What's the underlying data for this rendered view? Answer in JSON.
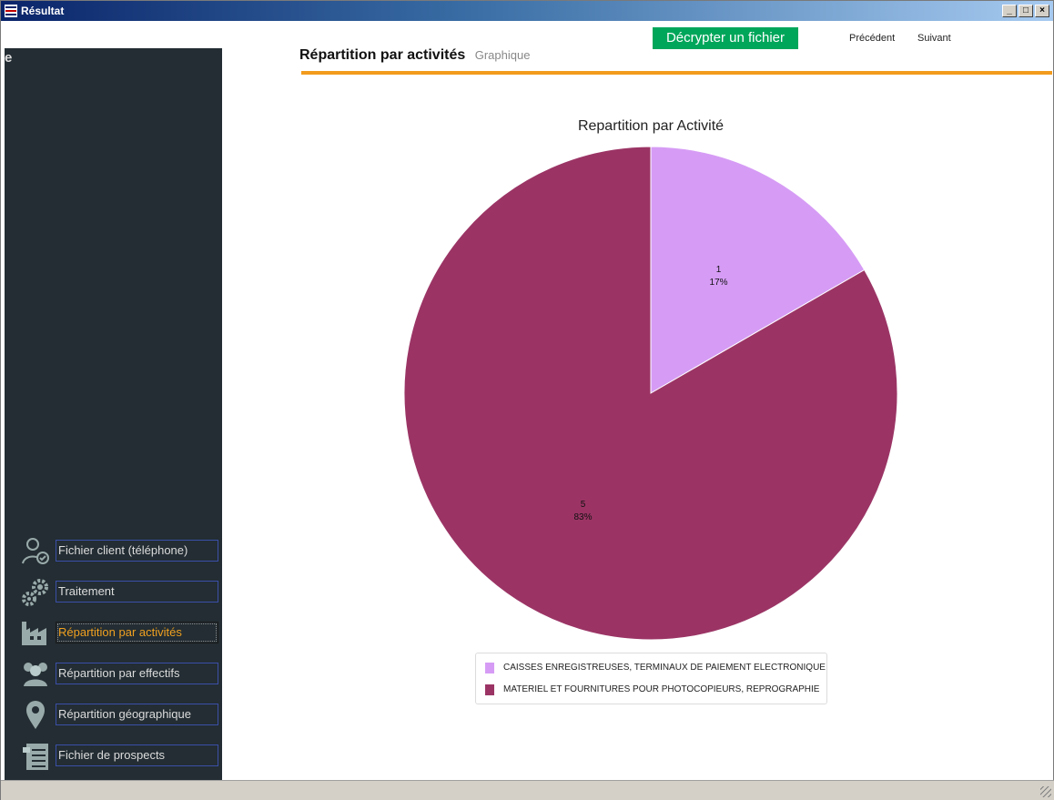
{
  "window": {
    "title": "Résultat",
    "buttons": {
      "minimize": "_",
      "maximize": "□",
      "close": "×"
    }
  },
  "toolbar": {
    "decrypt_label": "Décrypter un fichier",
    "prev_label": "Précédent",
    "next_label": "Suivant",
    "accent": "#00a65a"
  },
  "sidebar": {
    "stub_char": "e",
    "items": [
      {
        "label": "Fichier client (téléphone)",
        "icon": "user-check-icon"
      },
      {
        "label": "Traitement",
        "icon": "gears-icon"
      },
      {
        "label": "Répartition par activités",
        "icon": "factory-icon",
        "active": true
      },
      {
        "label": "Répartition par effectifs",
        "icon": "people-icon"
      },
      {
        "label": "Répartition géographique",
        "icon": "map-pin-icon"
      },
      {
        "label": "Fichier de prospects",
        "icon": "document-list-icon"
      }
    ],
    "active_color": "#f0a020",
    "background": "#232d33"
  },
  "page": {
    "title": "Répartition par activités",
    "subtitle": "Graphique",
    "rule_color": "#f29b1d"
  },
  "chart_data": {
    "type": "pie",
    "title": "Repartition par Activité",
    "slices": [
      {
        "label": "CAISSES ENREGISTREUSES, TERMINAUX DE PAIEMENT ELECTRONIQUE",
        "value": 1,
        "percent_label": "17%",
        "color": "#d69cf5"
      },
      {
        "label": "MATERIEL ET FOURNITURES POUR PHOTOCOPIEURS, REPROGRAPHIE",
        "value": 5,
        "percent_label": "83%",
        "color": "#9b3465"
      }
    ],
    "legend_position": "bottom"
  }
}
